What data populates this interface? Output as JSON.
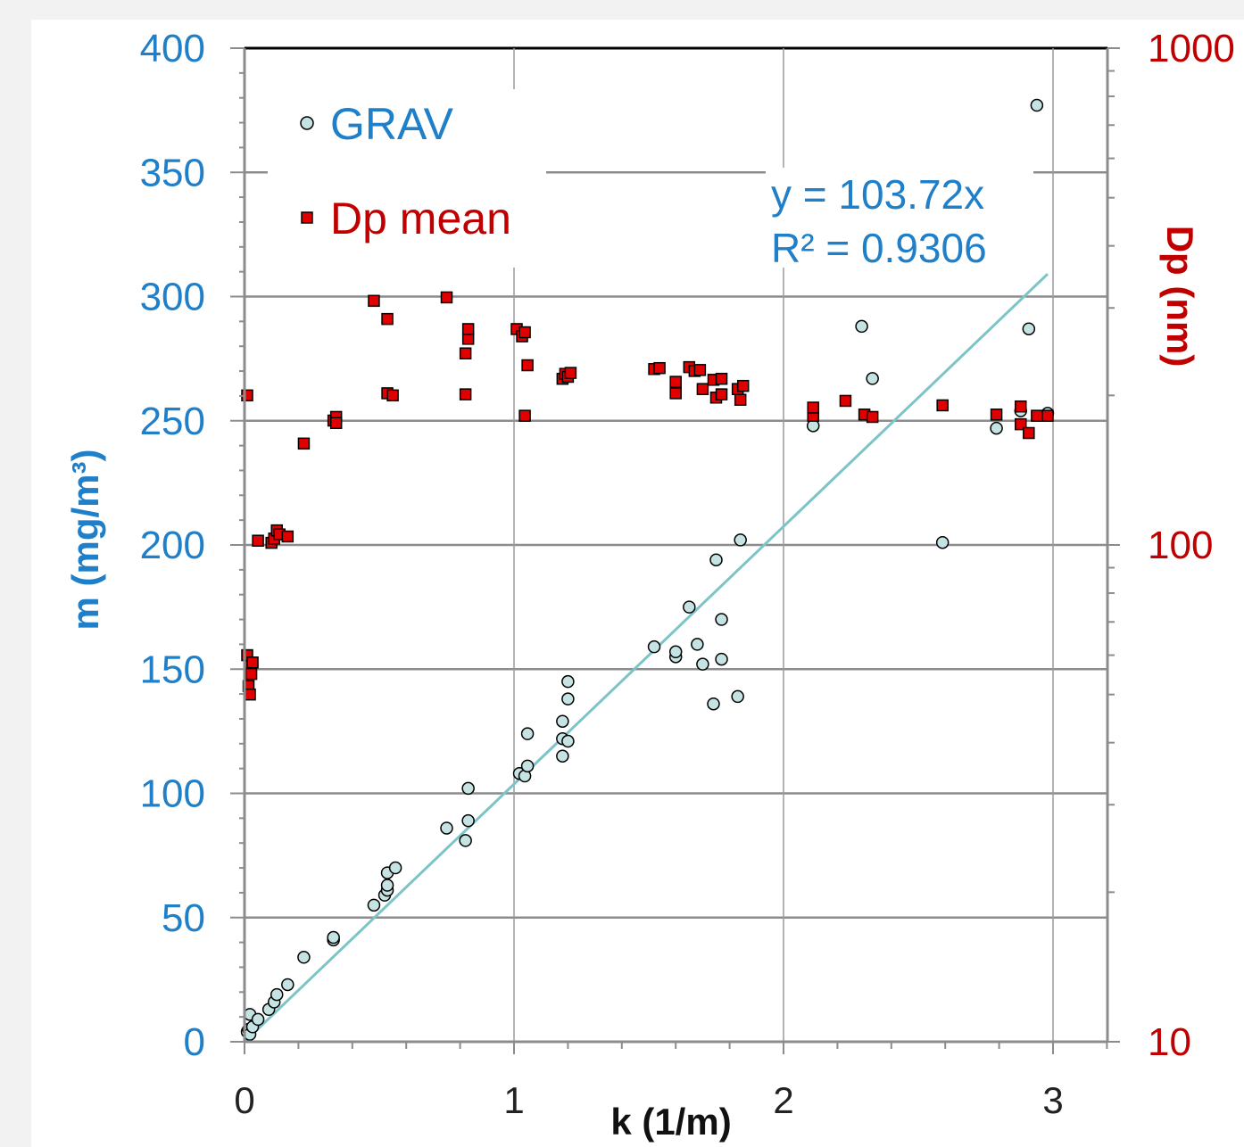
{
  "chart_data": {
    "type": "scatter",
    "x_axis": {
      "label": "k (1/m)",
      "range": [
        0,
        3.2
      ],
      "ticks": [
        0,
        1,
        2,
        3
      ],
      "tick_labels": [
        "0",
        "1",
        "2",
        "3"
      ]
    },
    "y_axis_left": {
      "label": "m (mg/m³)",
      "range": [
        0,
        400
      ],
      "ticks": [
        0,
        50,
        100,
        150,
        200,
        250,
        300,
        350,
        400
      ],
      "tick_labels": [
        "0",
        "50",
        "100",
        "150",
        "200",
        "250",
        "300",
        "350",
        "400"
      ]
    },
    "y_axis_right": {
      "label": "Dp (nm)",
      "scale": "log",
      "range": [
        10,
        1000
      ],
      "ticks": [
        10,
        100,
        1000
      ],
      "tick_labels": [
        "10",
        "100",
        "1000"
      ]
    },
    "grid": true,
    "legend_position": "top-left",
    "series": [
      {
        "name": "GRAV",
        "axis": "left",
        "marker": "circle",
        "color": "#c5e3e3",
        "points": [
          [
            0.01,
            4
          ],
          [
            0.015,
            5
          ],
          [
            0.02,
            3
          ],
          [
            0.02,
            11
          ],
          [
            0.03,
            6
          ],
          [
            0.05,
            9
          ],
          [
            0.09,
            13
          ],
          [
            0.11,
            16
          ],
          [
            0.12,
            19
          ],
          [
            0.16,
            23
          ],
          [
            0.22,
            34
          ],
          [
            0.33,
            41
          ],
          [
            0.33,
            42
          ],
          [
            0.48,
            55
          ],
          [
            0.52,
            59
          ],
          [
            0.53,
            61
          ],
          [
            0.53,
            63
          ],
          [
            0.53,
            68
          ],
          [
            0.56,
            70
          ],
          [
            0.75,
            86
          ],
          [
            0.82,
            81
          ],
          [
            0.83,
            89
          ],
          [
            0.83,
            102
          ],
          [
            1.02,
            108
          ],
          [
            1.04,
            107
          ],
          [
            1.05,
            111
          ],
          [
            1.05,
            124
          ],
          [
            1.18,
            115
          ],
          [
            1.18,
            122
          ],
          [
            1.18,
            129
          ],
          [
            1.2,
            121
          ],
          [
            1.2,
            138
          ],
          [
            1.2,
            145
          ],
          [
            1.52,
            159
          ],
          [
            1.6,
            155
          ],
          [
            1.6,
            157
          ],
          [
            1.65,
            175
          ],
          [
            1.68,
            160
          ],
          [
            1.7,
            152
          ],
          [
            1.74,
            136
          ],
          [
            1.75,
            194
          ],
          [
            1.77,
            154
          ],
          [
            1.77,
            170
          ],
          [
            1.83,
            139
          ],
          [
            1.84,
            202
          ],
          [
            2.11,
            248
          ],
          [
            2.29,
            288
          ],
          [
            2.33,
            267
          ],
          [
            2.59,
            201
          ],
          [
            2.79,
            247
          ],
          [
            2.88,
            254
          ],
          [
            2.91,
            287
          ],
          [
            2.94,
            377
          ],
          [
            2.98,
            253
          ]
        ]
      },
      {
        "name": "Dp mean",
        "axis": "right",
        "marker": "square",
        "color": "#e00000",
        "points": [
          [
            0.01,
            60
          ],
          [
            0.02,
            57
          ],
          [
            0.015,
            52
          ],
          [
            0.02,
            50
          ],
          [
            0.025,
            55
          ],
          [
            0.03,
            58
          ],
          [
            0.01,
            200
          ],
          [
            0.05,
            102
          ],
          [
            0.1,
            101
          ],
          [
            0.11,
            103
          ],
          [
            0.12,
            107
          ],
          [
            0.13,
            105
          ],
          [
            0.16,
            104
          ],
          [
            0.22,
            160
          ],
          [
            0.33,
            178
          ],
          [
            0.34,
            181
          ],
          [
            0.34,
            176
          ],
          [
            0.48,
            310
          ],
          [
            0.53,
            285
          ],
          [
            0.53,
            202
          ],
          [
            0.55,
            200
          ],
          [
            0.75,
            315
          ],
          [
            0.82,
            201
          ],
          [
            0.82,
            243
          ],
          [
            0.83,
            260
          ],
          [
            0.83,
            272
          ],
          [
            1.01,
            272
          ],
          [
            1.03,
            263
          ],
          [
            1.04,
            268
          ],
          [
            1.04,
            182
          ],
          [
            1.05,
            230
          ],
          [
            1.18,
            216
          ],
          [
            1.19,
            221
          ],
          [
            1.2,
            218
          ],
          [
            1.21,
            222
          ],
          [
            1.52,
            226
          ],
          [
            1.54,
            227
          ],
          [
            1.6,
            213
          ],
          [
            1.6,
            202
          ],
          [
            1.65,
            228
          ],
          [
            1.67,
            224
          ],
          [
            1.69,
            225
          ],
          [
            1.7,
            206
          ],
          [
            1.74,
            215
          ],
          [
            1.75,
            198
          ],
          [
            1.77,
            201
          ],
          [
            1.77,
            216
          ],
          [
            1.83,
            206
          ],
          [
            1.84,
            196
          ],
          [
            1.85,
            209
          ],
          [
            2.11,
            182
          ],
          [
            2.11,
            189
          ],
          [
            2.23,
            195
          ],
          [
            2.3,
            183
          ],
          [
            2.33,
            181
          ],
          [
            2.59,
            191
          ],
          [
            2.79,
            183
          ],
          [
            2.88,
            190
          ],
          [
            2.88,
            175
          ],
          [
            2.91,
            168
          ],
          [
            2.94,
            182
          ],
          [
            2.98,
            182
          ]
        ]
      }
    ],
    "trendline": {
      "series": "GRAV",
      "slope": 103.72,
      "x_range": [
        0,
        2.98
      ],
      "color": "#7cc4c8",
      "equation_lines": [
        "y = 103.72x",
        "R² = 0.9306"
      ]
    }
  }
}
